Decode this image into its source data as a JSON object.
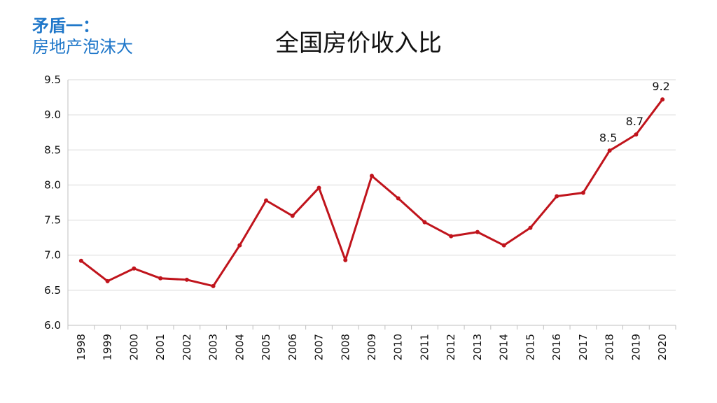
{
  "corner": {
    "line1": "矛盾一：",
    "line2": "房地产泡沫大"
  },
  "chart_data": {
    "type": "line",
    "title": "全国房价收入比",
    "x": [
      "1998",
      "1999",
      "2000",
      "2001",
      "2002",
      "2003",
      "2004",
      "2005",
      "2006",
      "2007",
      "2008",
      "2009",
      "2010",
      "2011",
      "2012",
      "2013",
      "2014",
      "2015",
      "2016",
      "2017",
      "2018",
      "2019",
      "2020"
    ],
    "series": [
      {
        "values": [
          6.92,
          6.63,
          6.81,
          6.67,
          6.65,
          6.56,
          7.14,
          7.78,
          7.56,
          7.96,
          6.93,
          8.13,
          7.81,
          7.47,
          7.27,
          7.33,
          7.14,
          7.39,
          7.84,
          7.89,
          8.49,
          8.72,
          9.22
        ],
        "color": "#c0141c"
      }
    ],
    "data_labels": [
      {
        "index": 20,
        "text": "8.5"
      },
      {
        "index": 21,
        "text": "8.7"
      },
      {
        "index": 22,
        "text": "9.2"
      }
    ],
    "ylim": [
      6.0,
      9.5
    ],
    "yticks": [
      "6.0",
      "6.5",
      "7.0",
      "7.5",
      "8.0",
      "8.5",
      "9.0",
      "9.5"
    ],
    "grid": true,
    "xlabel": "",
    "ylabel": ""
  }
}
